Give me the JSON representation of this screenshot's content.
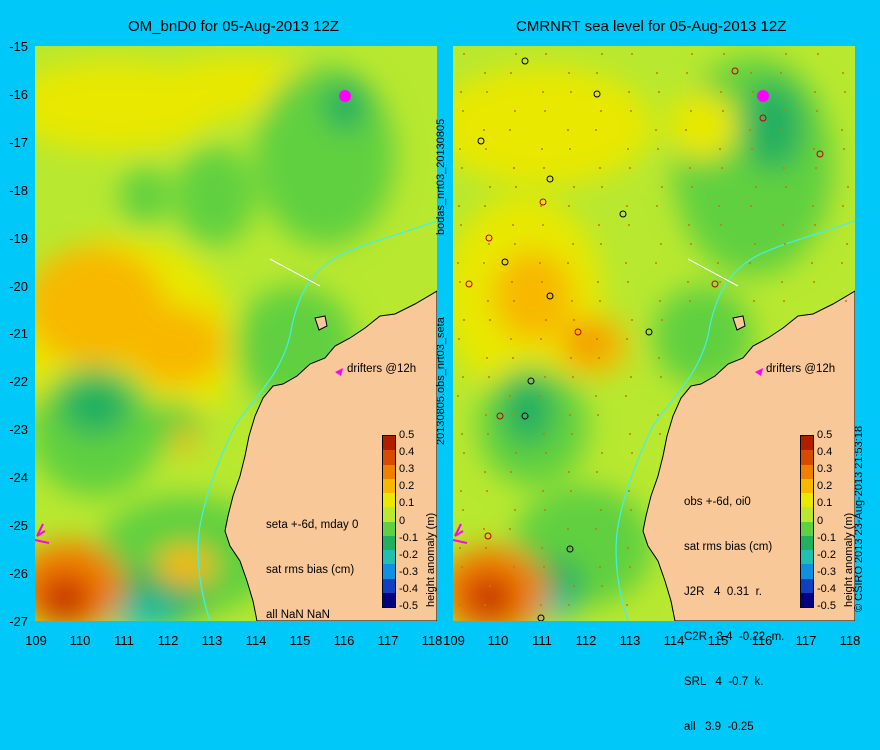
{
  "left_panel": {
    "title": "OM_bnD0 for 05-Aug-2013 12Z",
    "side_label": "bodas_nrt03_20130805",
    "info_lines": [
      "seta +-6d, mday 0",
      "sat rms bias (cm)",
      "all NaN NaN"
    ],
    "drifters_label": "drifters @12h"
  },
  "right_panel": {
    "title": "CMRNRT sea level  for 05-Aug-2013 12Z",
    "side_label": "20130805.obs_nrt03_seta",
    "info_lines": [
      "obs +-6d, oi0",
      "sat rms bias (cm)",
      "J2R   4  0.31  r.",
      "C2R   3.4  -0.22  m.",
      "SRL   4  -0.7  k.",
      "all   3.9  -0.25"
    ],
    "drifters_label": "drifters @12h",
    "copyright": "© CSIRO 2013   23-Aug-2013 21:53:18"
  },
  "axes": {
    "latitude_ticks": [
      "-15",
      "-16",
      "-17",
      "-18",
      "-19",
      "-20",
      "-21",
      "-22",
      "-23",
      "-24",
      "-25",
      "-26",
      "-27"
    ],
    "left_longitude_ticks": [
      "109",
      "110",
      "111",
      "112",
      "113",
      "114",
      "115",
      "116",
      "117",
      "118"
    ],
    "right_longitude_ticks": [
      "109",
      "110",
      "111",
      "112",
      "113",
      "114",
      "115",
      "116",
      "117",
      "118"
    ]
  },
  "colorbar": {
    "title": "height anomaly (m)",
    "ticks": [
      "0.5",
      "0.4",
      "0.3",
      "0.2",
      "0.1",
      "0",
      "-0.1",
      "-0.2",
      "-0.3",
      "-0.4",
      "-0.5"
    ],
    "colors": [
      "#b01e00",
      "#d84a00",
      "#f08000",
      "#f8b800",
      "#e8e800",
      "#b8e830",
      "#60d040",
      "#20b060",
      "#20c0b0",
      "#1090e0",
      "#1040c0",
      "#000080"
    ]
  },
  "map_colors": {
    "land": "#f8c898",
    "coast": "#000000",
    "isobath": "#40f0f0",
    "drifter": "#ff00ff"
  }
}
